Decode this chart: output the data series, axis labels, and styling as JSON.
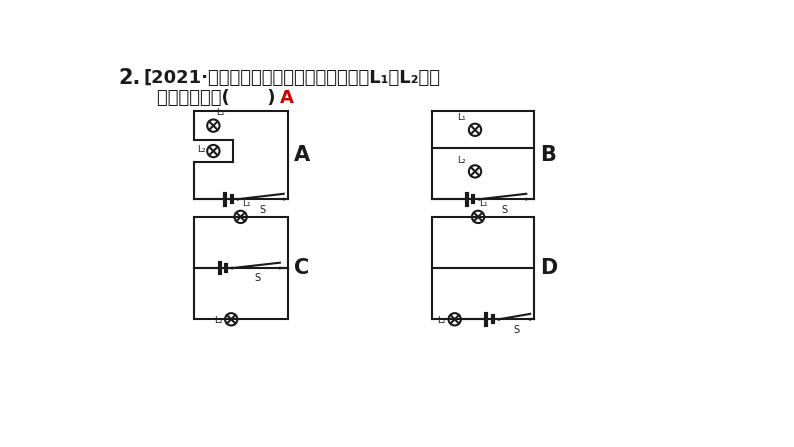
{
  "bg_color": "#ffffff",
  "line_color": "#1a1a1a",
  "text_color": "#1a1a1a",
  "answer_color": "#cc0000",
  "title1_cn": "2.  [2021·天津模拟如图所示的电路中， 灯泡",
  "title1_L1": "L",
  "title1_sub1": "1",
  "title1_mid": "与",
  "title1_L2": "L",
  "title1_sub2": "2",
  "title1_end": "组成",
  "title2_cn": "串联电路的是（    ）",
  "answer": "A"
}
